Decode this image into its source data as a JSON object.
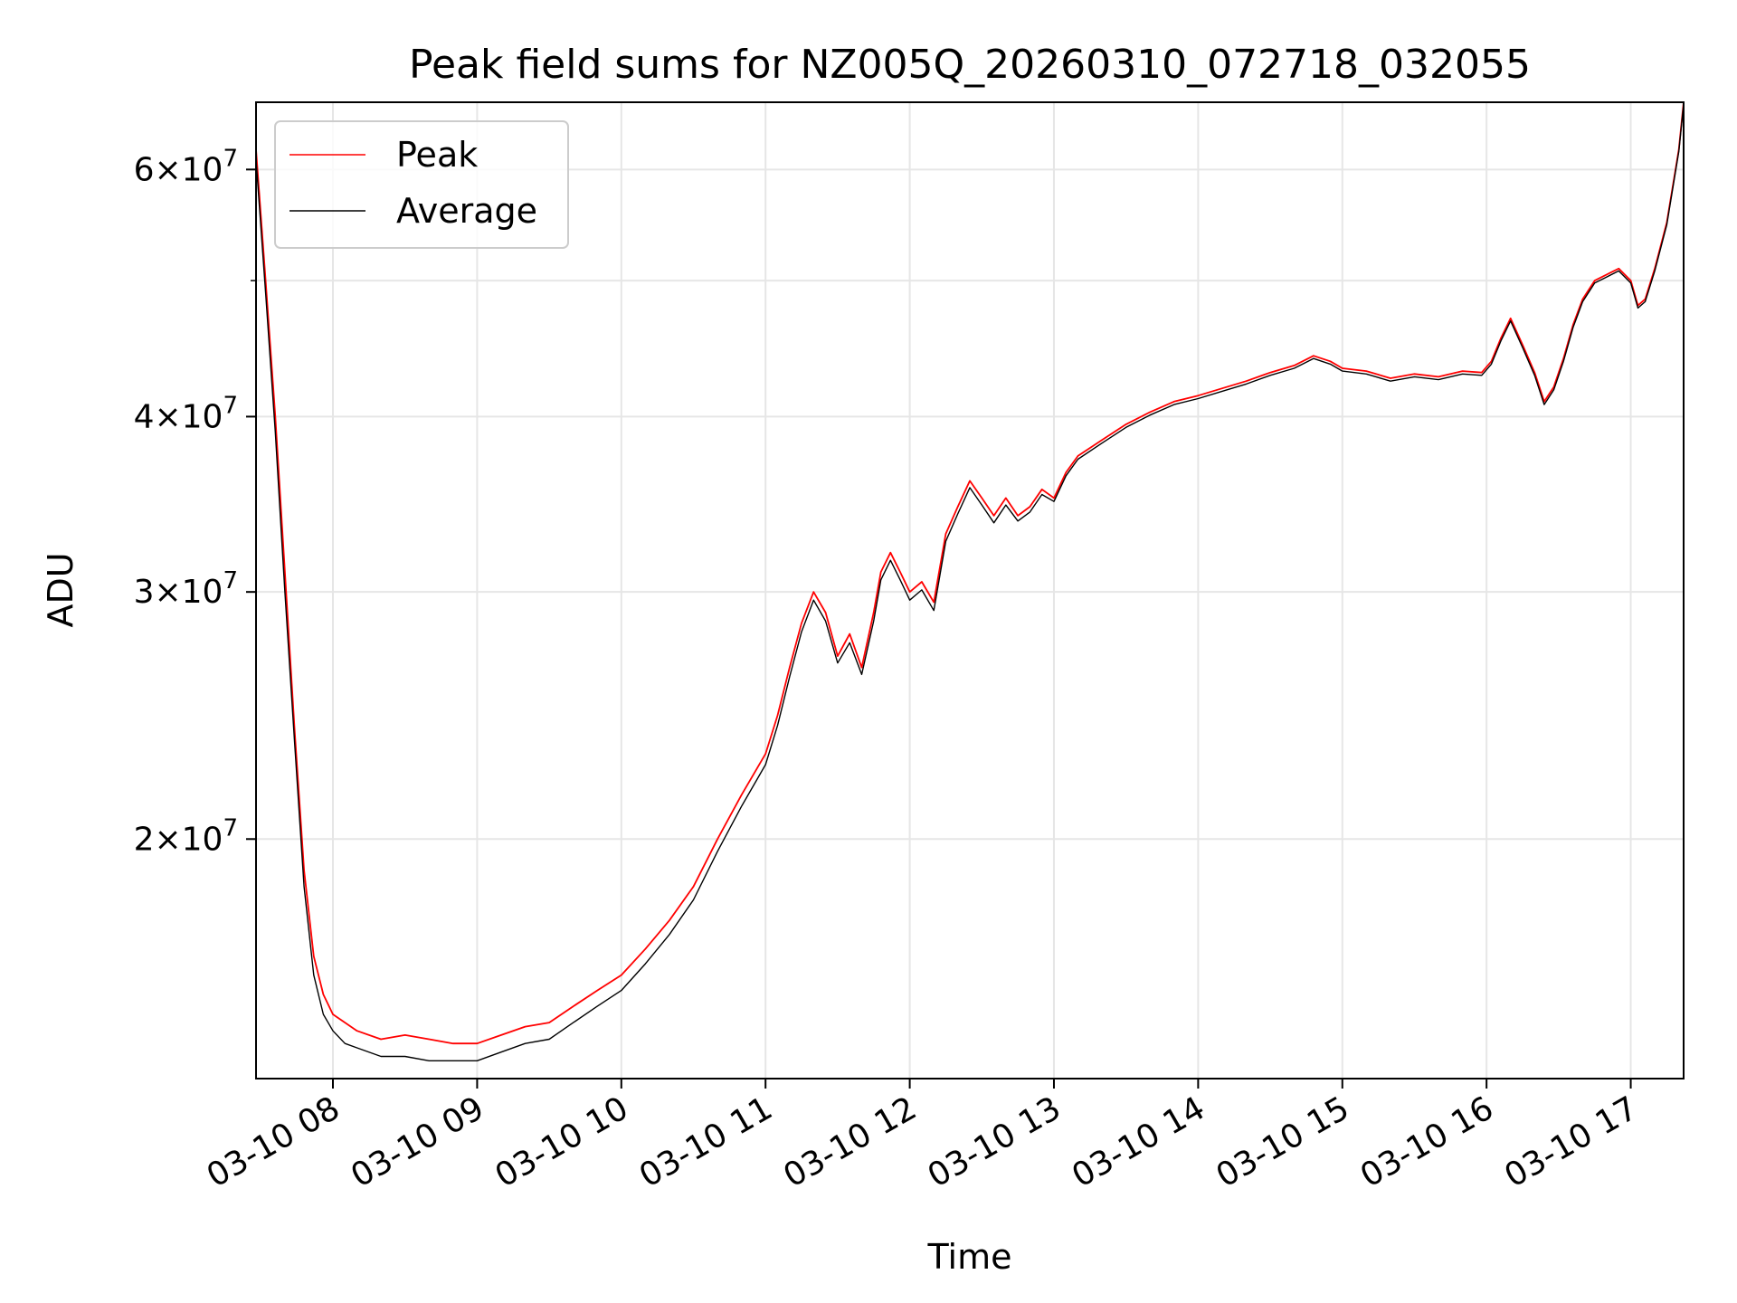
{
  "chart_data": {
    "type": "line",
    "title": "Peak field sums for NZ005Q_20260310_072718_032055",
    "xlabel": "Time",
    "ylabel": "ADU",
    "yscale": "log",
    "ylim": [
      13500000,
      67000000
    ],
    "xlim": [
      "03-10 07:28",
      "03-10 17:22"
    ],
    "grid": true,
    "legend": "top-left",
    "x_ticks": [
      {
        "time": "03-10 08:00",
        "label": "03-10 08"
      },
      {
        "time": "03-10 09:00",
        "label": "03-10 09"
      },
      {
        "time": "03-10 10:00",
        "label": "03-10 10"
      },
      {
        "time": "03-10 11:00",
        "label": "03-10 11"
      },
      {
        "time": "03-10 12:00",
        "label": "03-10 12"
      },
      {
        "time": "03-10 13:00",
        "label": "03-10 13"
      },
      {
        "time": "03-10 14:00",
        "label": "03-10 14"
      },
      {
        "time": "03-10 15:00",
        "label": "03-10 15"
      },
      {
        "time": "03-10 16:00",
        "label": "03-10 16"
      },
      {
        "time": "03-10 17:00",
        "label": "03-10 17"
      }
    ],
    "y_ticks": [
      {
        "value": 20000000,
        "mantissa": "2",
        "base": "10",
        "exp": "7"
      },
      {
        "value": 30000000,
        "mantissa": "3",
        "base": "10",
        "exp": "7"
      },
      {
        "value": 40000000,
        "mantissa": "4",
        "base": "10",
        "exp": "7"
      },
      {
        "value": 60000000,
        "mantissa": "6",
        "base": "10",
        "exp": "7"
      }
    ],
    "y_minor_ticks": [
      50000000
    ],
    "series": [
      {
        "name": "Peak",
        "color": "#ff0000",
        "x": [
          "03-10 07:28",
          "03-10 07:32",
          "03-10 07:36",
          "03-10 07:40",
          "03-10 07:44",
          "03-10 07:48",
          "03-10 07:52",
          "03-10 07:56",
          "03-10 08:00",
          "03-10 08:05",
          "03-10 08:10",
          "03-10 08:20",
          "03-10 08:30",
          "03-10 08:40",
          "03-10 08:50",
          "03-10 09:00",
          "03-10 09:10",
          "03-10 09:20",
          "03-10 09:30",
          "03-10 09:40",
          "03-10 09:50",
          "03-10 10:00",
          "03-10 10:10",
          "03-10 10:20",
          "03-10 10:30",
          "03-10 10:40",
          "03-10 10:50",
          "03-10 11:00",
          "03-10 11:05",
          "03-10 11:10",
          "03-10 11:15",
          "03-10 11:20",
          "03-10 11:25",
          "03-10 11:30",
          "03-10 11:35",
          "03-10 11:40",
          "03-10 11:45",
          "03-10 11:48",
          "03-10 11:52",
          "03-10 11:56",
          "03-10 12:00",
          "03-10 12:05",
          "03-10 12:10",
          "03-10 12:15",
          "03-10 12:20",
          "03-10 12:25",
          "03-10 12:30",
          "03-10 12:35",
          "03-10 12:40",
          "03-10 12:45",
          "03-10 12:50",
          "03-10 12:55",
          "03-10 13:00",
          "03-10 13:05",
          "03-10 13:10",
          "03-10 13:20",
          "03-10 13:30",
          "03-10 13:40",
          "03-10 13:50",
          "03-10 14:00",
          "03-10 14:10",
          "03-10 14:20",
          "03-10 14:30",
          "03-10 14:40",
          "03-10 14:48",
          "03-10 14:55",
          "03-10 15:00",
          "03-10 15:10",
          "03-10 15:20",
          "03-10 15:30",
          "03-10 15:40",
          "03-10 15:50",
          "03-10 15:58",
          "03-10 16:02",
          "03-10 16:06",
          "03-10 16:10",
          "03-10 16:15",
          "03-10 16:20",
          "03-10 16:24",
          "03-10 16:28",
          "03-10 16:32",
          "03-10 16:36",
          "03-10 16:40",
          "03-10 16:45",
          "03-10 16:50",
          "03-10 16:55",
          "03-10 17:00",
          "03-10 17:03",
          "03-10 17:06",
          "03-10 17:10",
          "03-10 17:15",
          "03-10 17:20",
          "03-10 17:22"
        ],
        "values": [
          62000000,
          50000000,
          40000000,
          31000000,
          24000000,
          19000000,
          16500000,
          15500000,
          15000000,
          14800000,
          14600000,
          14400000,
          14500000,
          14400000,
          14300000,
          14300000,
          14500000,
          14700000,
          14800000,
          15200000,
          15600000,
          16000000,
          16700000,
          17500000,
          18500000,
          20000000,
          21500000,
          23000000,
          24500000,
          26500000,
          28500000,
          30000000,
          29000000,
          27000000,
          28000000,
          26500000,
          29000000,
          31000000,
          32000000,
          31000000,
          30000000,
          30500000,
          29500000,
          33000000,
          34500000,
          36000000,
          35000000,
          34000000,
          35000000,
          34000000,
          34500000,
          35500000,
          35000000,
          36500000,
          37500000,
          38500000,
          39500000,
          40300000,
          41000000,
          41400000,
          41900000,
          42400000,
          43000000,
          43500000,
          44200000,
          43800000,
          43300000,
          43100000,
          42600000,
          42900000,
          42700000,
          43100000,
          43000000,
          43800000,
          45500000,
          47000000,
          45000000,
          43000000,
          41000000,
          42000000,
          44000000,
          46500000,
          48500000,
          50000000,
          50500000,
          51000000,
          50000000,
          48000000,
          48500000,
          51000000,
          55000000,
          62000000,
          67000000
        ]
      },
      {
        "name": "Average",
        "color": "#000000",
        "x": [
          "03-10 07:28",
          "03-10 07:32",
          "03-10 07:36",
          "03-10 07:40",
          "03-10 07:44",
          "03-10 07:48",
          "03-10 07:52",
          "03-10 07:56",
          "03-10 08:00",
          "03-10 08:05",
          "03-10 08:10",
          "03-10 08:20",
          "03-10 08:30",
          "03-10 08:40",
          "03-10 08:50",
          "03-10 09:00",
          "03-10 09:10",
          "03-10 09:20",
          "03-10 09:30",
          "03-10 09:40",
          "03-10 09:50",
          "03-10 10:00",
          "03-10 10:10",
          "03-10 10:20",
          "03-10 10:30",
          "03-10 10:40",
          "03-10 10:50",
          "03-10 11:00",
          "03-10 11:05",
          "03-10 11:10",
          "03-10 11:15",
          "03-10 11:20",
          "03-10 11:25",
          "03-10 11:30",
          "03-10 11:35",
          "03-10 11:40",
          "03-10 11:45",
          "03-10 11:48",
          "03-10 11:52",
          "03-10 11:56",
          "03-10 12:00",
          "03-10 12:05",
          "03-10 12:10",
          "03-10 12:15",
          "03-10 12:20",
          "03-10 12:25",
          "03-10 12:30",
          "03-10 12:35",
          "03-10 12:40",
          "03-10 12:45",
          "03-10 12:50",
          "03-10 12:55",
          "03-10 13:00",
          "03-10 13:05",
          "03-10 13:10",
          "03-10 13:20",
          "03-10 13:30",
          "03-10 13:40",
          "03-10 13:50",
          "03-10 14:00",
          "03-10 14:10",
          "03-10 14:20",
          "03-10 14:30",
          "03-10 14:40",
          "03-10 14:48",
          "03-10 14:55",
          "03-10 15:00",
          "03-10 15:10",
          "03-10 15:20",
          "03-10 15:30",
          "03-10 15:40",
          "03-10 15:50",
          "03-10 15:58",
          "03-10 16:02",
          "03-10 16:06",
          "03-10 16:10",
          "03-10 16:15",
          "03-10 16:20",
          "03-10 16:24",
          "03-10 16:28",
          "03-10 16:32",
          "03-10 16:36",
          "03-10 16:40",
          "03-10 16:45",
          "03-10 16:50",
          "03-10 16:55",
          "03-10 17:00",
          "03-10 17:03",
          "03-10 17:06",
          "03-10 17:10",
          "03-10 17:15",
          "03-10 17:20",
          "03-10 17:22"
        ],
        "values": [
          61000000,
          49000000,
          39000000,
          30000000,
          23500000,
          18500000,
          16000000,
          15000000,
          14600000,
          14300000,
          14200000,
          14000000,
          14000000,
          13900000,
          13900000,
          13900000,
          14100000,
          14300000,
          14400000,
          14800000,
          15200000,
          15600000,
          16300000,
          17100000,
          18100000,
          19600000,
          21100000,
          22600000,
          24100000,
          26100000,
          28100000,
          29600000,
          28600000,
          26700000,
          27600000,
          26200000,
          28600000,
          30600000,
          31600000,
          30600000,
          29600000,
          30100000,
          29100000,
          32600000,
          34100000,
          35600000,
          34600000,
          33600000,
          34600000,
          33700000,
          34200000,
          35200000,
          34800000,
          36300000,
          37300000,
          38300000,
          39300000,
          40100000,
          40800000,
          41200000,
          41700000,
          42200000,
          42800000,
          43300000,
          44000000,
          43600000,
          43100000,
          42900000,
          42400000,
          42700000,
          42500000,
          42900000,
          42800000,
          43600000,
          45300000,
          46800000,
          44800000,
          42800000,
          40800000,
          41800000,
          43800000,
          46300000,
          48300000,
          49800000,
          50300000,
          50800000,
          49800000,
          47800000,
          48300000,
          50800000,
          54800000,
          61800000,
          66800000
        ]
      }
    ]
  }
}
